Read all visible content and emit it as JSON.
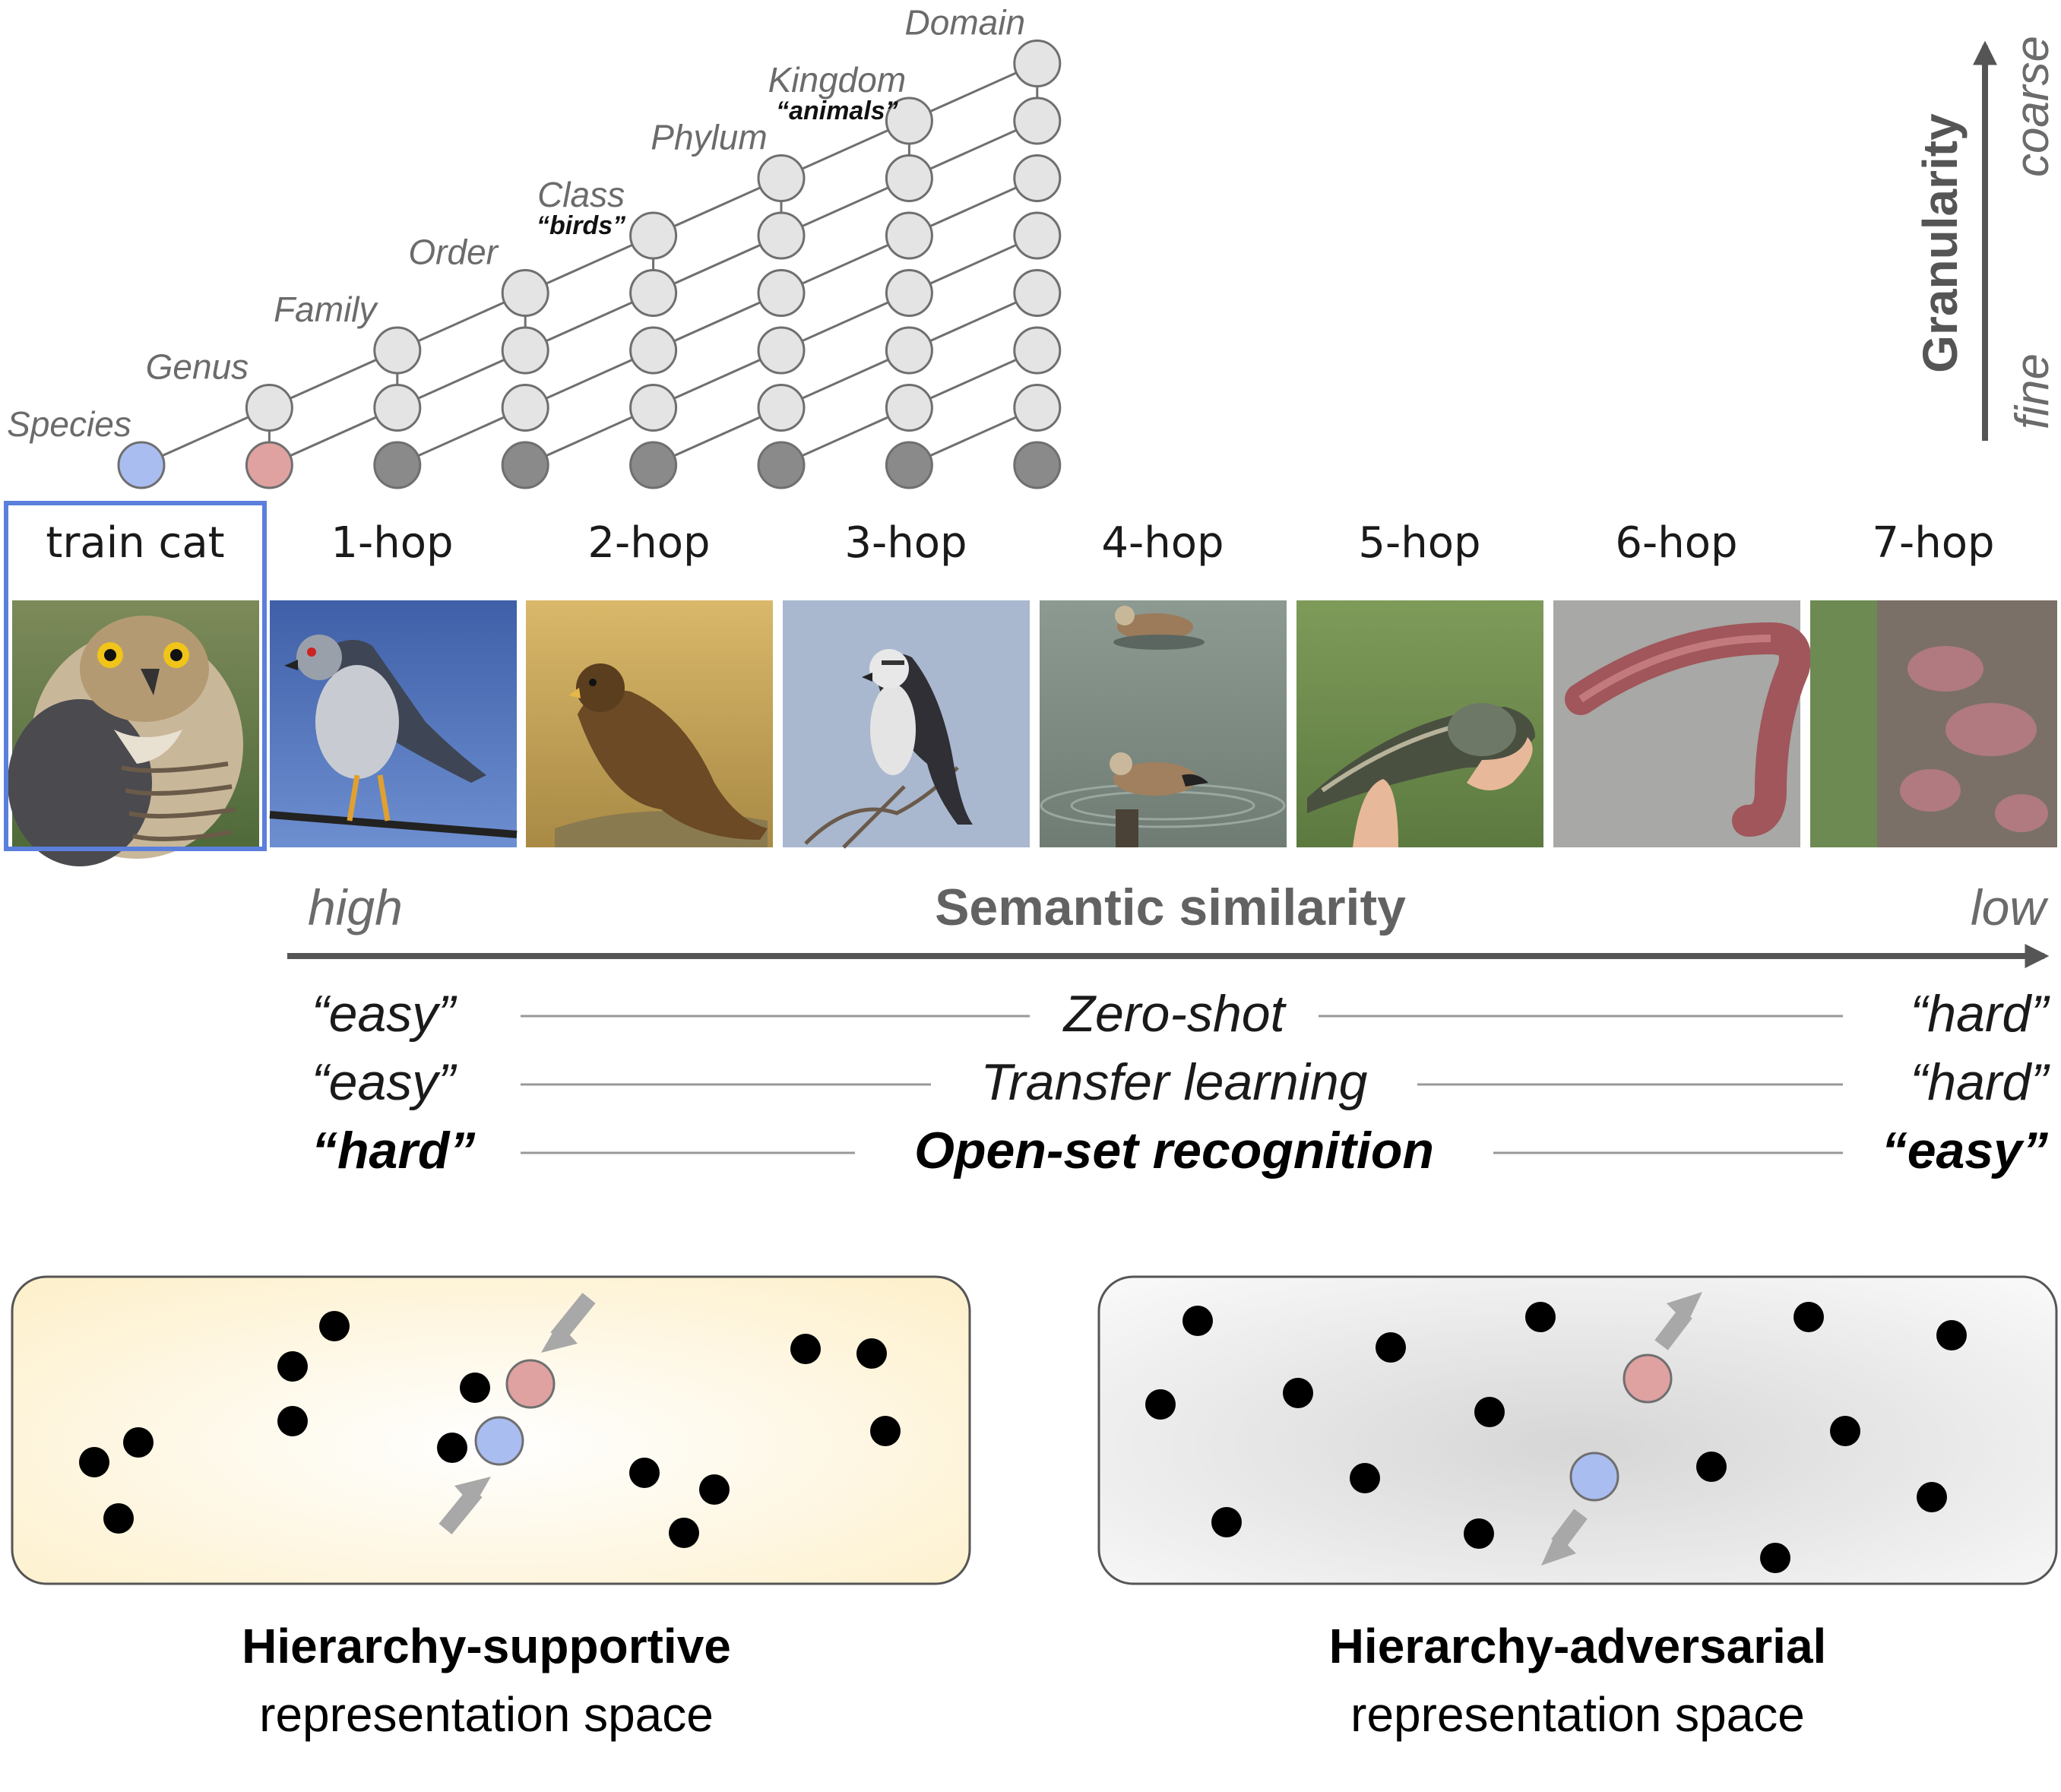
{
  "hierarchy": {
    "levels": [
      {
        "label": "Species",
        "quote": ""
      },
      {
        "label": "Genus",
        "quote": ""
      },
      {
        "label": "Family",
        "quote": ""
      },
      {
        "label": "Order",
        "quote": ""
      },
      {
        "label": "Class",
        "quote": "“birds”"
      },
      {
        "label": "Phylum",
        "quote": ""
      },
      {
        "label": "Kingdom",
        "quote": "“animals”"
      },
      {
        "label": "Domain",
        "quote": ""
      }
    ],
    "node_colors": {
      "node": "#e4e4e4",
      "train": "#a9bdf0",
      "one_hop": "#e0a1a1",
      "leaf": "#8a8a8a",
      "outline": "#6f6f6f"
    }
  },
  "granularity": {
    "title": "Granularity",
    "coarse": "coarse",
    "fine": "fine"
  },
  "columns": [
    {
      "label": "train cat",
      "image": "perched hawk (close-up)"
    },
    {
      "label": "1-hop",
      "image": "grey hawk on a wire"
    },
    {
      "label": "2-hop",
      "image": "brown eagle"
    },
    {
      "label": "3-hop",
      "image": "osprey on a branch"
    },
    {
      "label": "4-hop",
      "image": "ducks on water"
    },
    {
      "label": "5-hop",
      "image": "fish held in hands"
    },
    {
      "label": "6-hop",
      "image": "earthworm"
    },
    {
      "label": "7-hop",
      "image": "tree bark with lichen"
    }
  ],
  "highlight_color": "#5b7fdc",
  "similarity": {
    "title": "Semantic similarity",
    "high": "high",
    "low": "low"
  },
  "tasks": [
    {
      "name": "Zero-shot",
      "left": "“easy”",
      "right": "“hard”",
      "bold": false
    },
    {
      "name": "Transfer learning",
      "left": "“easy”",
      "right": "“hard”",
      "bold": false
    },
    {
      "name": "Open-set recognition",
      "left": "“hard”",
      "right": "“easy”",
      "bold": true
    }
  ],
  "panels": [
    {
      "title": "Hierarchy-supportive",
      "subtitle": "representation space",
      "background": "#fdf3d6"
    },
    {
      "title": "Hierarchy-adversarial",
      "subtitle": "representation space",
      "background": "#dcdcdc"
    }
  ]
}
